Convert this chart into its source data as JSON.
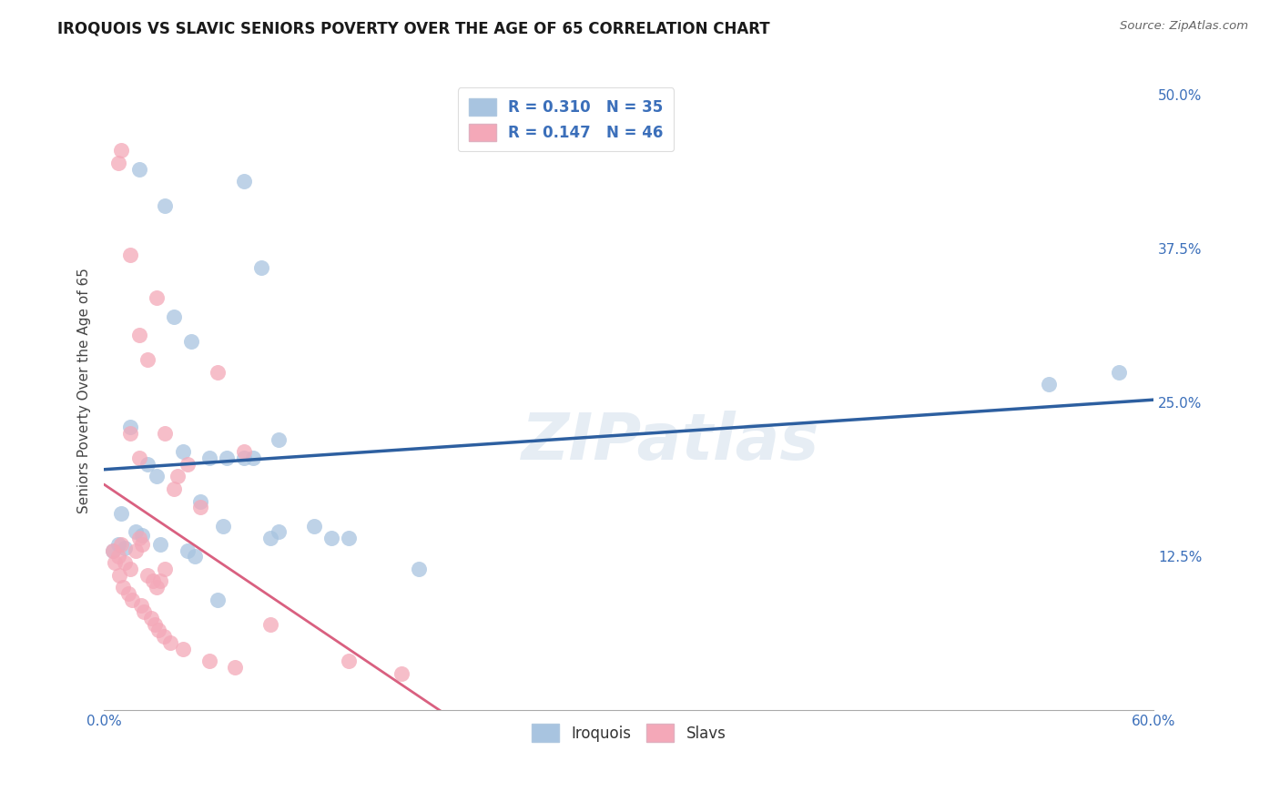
{
  "title": "IROQUOIS VS SLAVIC SENIORS POVERTY OVER THE AGE OF 65 CORRELATION CHART",
  "source": "Source: ZipAtlas.com",
  "ylabel": "Seniors Poverty Over the Age of 65",
  "ylabel_ticks": [
    "12.5%",
    "25.0%",
    "37.5%",
    "50.0%"
  ],
  "ylabel_vals": [
    12.5,
    25.0,
    37.5,
    50.0
  ],
  "iroquois_R": 0.31,
  "iroquois_N": 35,
  "slavs_R": 0.147,
  "slavs_N": 46,
  "iroquois_color": "#a8c4e0",
  "slavs_color": "#f4a8b8",
  "iroquois_line_color": "#2d5fa0",
  "slavs_line_color": "#d96080",
  "iroquois_x": [
    1.0,
    2.0,
    3.5,
    4.0,
    5.0,
    8.0,
    9.0,
    10.0,
    1.5,
    2.5,
    3.0,
    4.5,
    5.5,
    6.0,
    7.0,
    9.5,
    13.0,
    6.5,
    8.5,
    0.5,
    0.8,
    1.2,
    1.8,
    2.2,
    3.2,
    4.8,
    5.2,
    6.8,
    8.0,
    10.0,
    12.0,
    14.0,
    18.0,
    54.0,
    58.0
  ],
  "iroquois_y": [
    16.0,
    44.0,
    41.0,
    32.0,
    30.0,
    43.0,
    36.0,
    22.0,
    23.0,
    20.0,
    19.0,
    21.0,
    17.0,
    20.5,
    20.5,
    14.0,
    14.0,
    9.0,
    20.5,
    13.0,
    13.5,
    13.2,
    14.5,
    14.2,
    13.5,
    13.0,
    12.5,
    15.0,
    20.5,
    14.5,
    15.0,
    14.0,
    11.5,
    26.5,
    27.5
  ],
  "slavs_x": [
    0.5,
    0.8,
    1.0,
    1.2,
    1.5,
    1.8,
    2.0,
    2.2,
    2.5,
    2.8,
    3.0,
    3.2,
    3.5,
    4.0,
    4.2,
    4.8,
    5.5,
    6.5,
    8.0,
    0.6,
    0.9,
    1.1,
    1.4,
    1.6,
    2.1,
    2.3,
    2.7,
    2.9,
    3.1,
    3.4,
    3.8,
    4.5,
    6.0,
    7.5,
    0.8,
    1.0,
    1.5,
    2.0,
    2.5,
    3.0,
    3.5,
    9.5,
    14.0,
    17.0,
    1.5,
    2.0
  ],
  "slavs_y": [
    13.0,
    12.5,
    13.5,
    12.0,
    11.5,
    13.0,
    14.0,
    13.5,
    11.0,
    10.5,
    10.0,
    10.5,
    11.5,
    18.0,
    19.0,
    20.0,
    16.5,
    27.5,
    21.0,
    12.0,
    11.0,
    10.0,
    9.5,
    9.0,
    8.5,
    8.0,
    7.5,
    7.0,
    6.5,
    6.0,
    5.5,
    5.0,
    4.0,
    3.5,
    44.5,
    45.5,
    37.0,
    30.5,
    28.5,
    33.5,
    22.5,
    7.0,
    4.0,
    3.0,
    22.5,
    20.5
  ],
  "watermark_text": "ZIPatlas",
  "bottom_legend1": "Iroquois",
  "bottom_legend2": "Slavs",
  "xlim": [
    0,
    60
  ],
  "ylim": [
    0,
    52
  ],
  "xtick_positions": [
    0,
    60
  ],
  "xtick_labels": [
    "0.0%",
    "60.0%"
  ]
}
